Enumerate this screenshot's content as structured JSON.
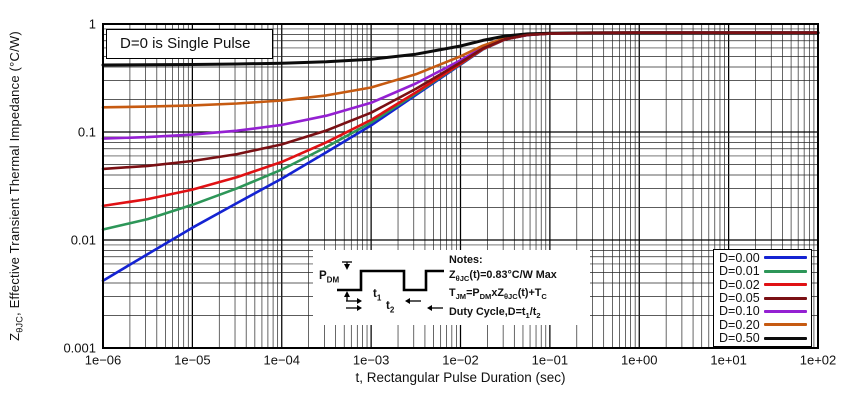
{
  "figure": {
    "title_box": "D=0 is Single Pulse",
    "x_axis_label": "t, Rectangular Pulse Duration (sec)",
    "y_axis_label_html": "Z<sub>θJC</sub>, Effective Transient Thermal Impedance (°C/W)"
  },
  "annotation": {
    "pdm_html": "P<sub>DM</sub>",
    "t1_html": "t<sub>1</sub>",
    "t2_html": "t<sub>2</sub>",
    "notes_html": [
      "Notes:",
      "Z<sub>θJC</sub>(t)=0.83°C/W Max",
      "T<sub>JM</sub>=P<sub>DM</sub>xZ<sub>θJC</sub>(t)+T<sub>C</sub>",
      "Duty Cycle,D=t<sub>1</sub>/t<sub>2</sub>"
    ]
  },
  "chart_data": {
    "type": "line",
    "title": "D=0 is Single Pulse",
    "xlabel": "t, Rectangular Pulse Duration (sec)",
    "ylabel": "ZθJC, Effective Transient Thermal Impedance (°C/W)",
    "x_scale": "log",
    "y_scale": "log",
    "xlim": [
      1e-06,
      100
    ],
    "ylim": [
      0.001,
      1
    ],
    "grid": "full log grid with minor lines, black on white",
    "legend_position": "lower right",
    "z_max_plateau": 0.83,
    "x_tick_labels": [
      "1e−06",
      "1e−05",
      "1e−04",
      "1e−03",
      "1e−02",
      "1e−01",
      "1e+00",
      "1e+01",
      "1e+02"
    ],
    "y_tick_labels": [
      "1",
      "0.1",
      "0.01",
      "0.001"
    ],
    "log10_t": [
      -6,
      -5.5,
      -5,
      -4.5,
      -4,
      -3.5,
      -3,
      -2.5,
      -2,
      -1.75,
      -1.5,
      -1.25,
      -1,
      -0.5,
      0,
      1,
      2
    ],
    "series": [
      {
        "name": "D=0.00",
        "color": "#1423d2",
        "values": [
          0.0042,
          0.0074,
          0.013,
          0.022,
          0.037,
          0.065,
          0.115,
          0.22,
          0.42,
          0.58,
          0.72,
          0.79,
          0.815,
          0.828,
          0.83,
          0.83,
          0.83
        ]
      },
      {
        "name": "D=0.01",
        "color": "#2d9658",
        "values": [
          0.0125,
          0.0156,
          0.0212,
          0.0301,
          0.0449,
          0.0727,
          0.1222,
          0.2261,
          0.4241,
          0.5825,
          0.7211,
          0.7904,
          0.8152,
          0.828,
          0.83,
          0.83,
          0.83
        ]
      },
      {
        "name": "D=0.02",
        "color": "#e01114",
        "values": [
          0.0207,
          0.0239,
          0.0293,
          0.0382,
          0.0529,
          0.0803,
          0.1293,
          0.2322,
          0.4282,
          0.585,
          0.7222,
          0.7908,
          0.8153,
          0.828,
          0.83,
          0.83,
          0.83
        ]
      },
      {
        "name": "D=0.05",
        "color": "#7a1014",
        "values": [
          0.0455,
          0.0485,
          0.0539,
          0.0624,
          0.0767,
          0.1033,
          0.1508,
          0.2505,
          0.4405,
          0.5925,
          0.7255,
          0.792,
          0.8157,
          0.8281,
          0.83,
          0.83,
          0.83
        ]
      },
      {
        "name": "D=0.10",
        "color": "#9420d2",
        "values": [
          0.0868,
          0.0897,
          0.0947,
          0.1028,
          0.1163,
          0.1415,
          0.1865,
          0.281,
          0.461,
          0.605,
          0.731,
          0.794,
          0.8165,
          0.8282,
          0.83,
          0.83,
          0.83
        ]
      },
      {
        "name": "D=0.20",
        "color": "#c65a11",
        "values": [
          0.1694,
          0.1719,
          0.1764,
          0.1836,
          0.1956,
          0.218,
          0.258,
          0.342,
          0.502,
          0.63,
          0.742,
          0.798,
          0.818,
          0.8284,
          0.83,
          0.83,
          0.83
        ]
      },
      {
        "name": "D=0.50",
        "color": "#0c0c0c",
        "values": [
          0.4171,
          0.4187,
          0.4215,
          0.426,
          0.4335,
          0.4475,
          0.4725,
          0.525,
          0.625,
          0.705,
          0.775,
          0.81,
          0.8225,
          0.829,
          0.83,
          0.83,
          0.83
        ]
      }
    ],
    "draw_order": [
      0,
      1,
      2,
      4,
      5,
      6,
      3
    ]
  }
}
